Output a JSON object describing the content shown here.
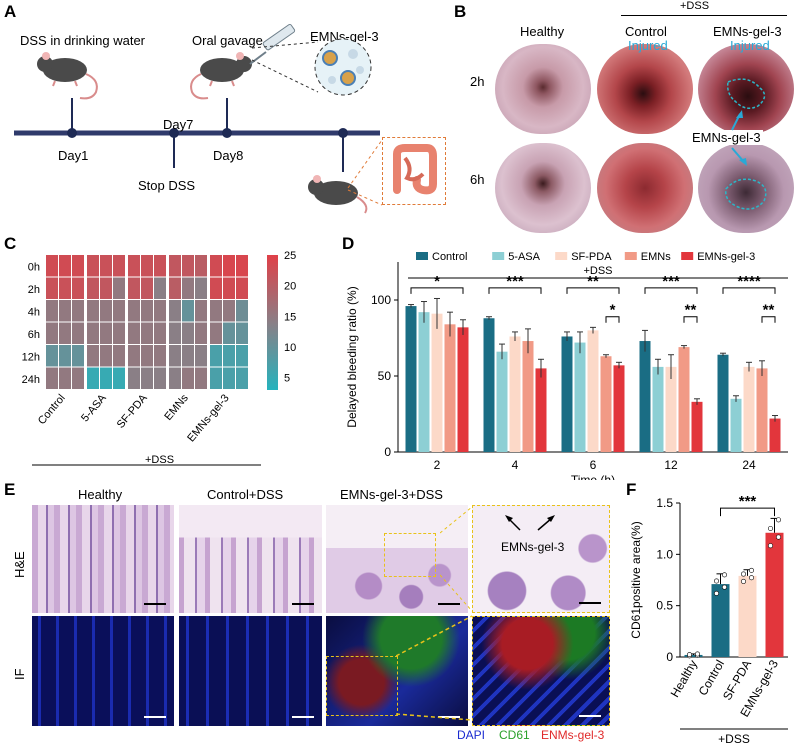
{
  "panel_a": {
    "label": "A",
    "dss_text": "DSS in drinking water",
    "gavage_text": "Oral gavage",
    "material_text": "EMNs-gel-3",
    "day1": "Day1",
    "day7": "Day7",
    "day8": "Day8",
    "stop_dss": "Stop DSS"
  },
  "panel_b": {
    "label": "B",
    "dss_header": "+DSS",
    "col_healthy": "Healthy",
    "col_control": "Control",
    "col_emns": "EMNs-gel-3",
    "row_2h": "2h",
    "row_6h": "6h",
    "injured_1": "Injured",
    "injured_2": "Injured",
    "pointer_label": "EMNs-gel-3"
  },
  "panel_c": {
    "label": "C",
    "groups_label": "+DSS",
    "colorbar_ticks": [
      "25",
      "20",
      "15",
      "10",
      "5"
    ],
    "colors": {
      "high": "#e04048",
      "mid": "#8a7f86",
      "low": "#25b3bd"
    }
  },
  "panel_e": {
    "label": "E",
    "col_healthy": "Healthy",
    "col_control": "Control+DSS",
    "col_emns": "EMNs-gel-3+DSS",
    "row_he": "H&E",
    "row_if": "IF",
    "inset_label": "EMNs-gel-3",
    "legend_dapi": "DAPI",
    "legend_cd61": "CD61",
    "legend_emns": "ENMs-gel-3"
  },
  "chart_data": [
    {
      "type": "heatmap",
      "panel": "C",
      "rows": [
        "0h",
        "2h",
        "4h",
        "6h",
        "12h",
        "24h"
      ],
      "columns": [
        "Control",
        "5-ASA",
        "SF-PDA",
        "EMNs",
        "EMNs-gel-3"
      ],
      "replicates_per_group": 3,
      "values": [
        [
          23,
          23,
          23,
          22,
          22,
          22,
          22,
          22,
          22,
          21,
          21,
          20,
          23,
          24,
          24
        ],
        [
          22,
          22,
          22,
          21,
          21,
          15,
          21,
          21,
          14,
          20,
          15,
          14,
          23,
          23,
          23
        ],
        [
          15,
          15,
          15,
          15,
          15,
          15,
          15,
          15,
          15,
          14,
          10,
          15,
          15,
          15,
          11
        ],
        [
          15,
          15,
          15,
          15,
          15,
          15,
          15,
          15,
          15,
          14,
          14,
          15,
          15,
          10,
          10
        ],
        [
          10,
          10,
          10,
          15,
          15,
          15,
          15,
          15,
          15,
          14,
          14,
          14,
          7,
          7,
          7
        ],
        [
          15,
          15,
          15,
          5,
          5,
          5,
          14,
          14,
          14,
          14,
          15,
          15,
          7,
          7,
          7
        ]
      ],
      "colorbar_range": [
        3,
        25
      ],
      "xlabel": "+DSS"
    },
    {
      "type": "bar",
      "panel": "D",
      "title": "+DSS",
      "xlabel": "Time (h)",
      "ylabel": "Delayed bleeding ratio (%)",
      "ylim": [
        0,
        125
      ],
      "yticks": [
        "0",
        "50",
        "100"
      ],
      "categories": [
        "2",
        "4",
        "6",
        "12",
        "24"
      ],
      "series": [
        {
          "name": "Control",
          "color": "#1a6d84",
          "values": [
            96,
            88,
            76,
            73,
            64
          ],
          "errors": [
            1,
            1,
            3,
            7,
            1
          ]
        },
        {
          "name": "5-ASA",
          "color": "#8dcfd4",
          "values": [
            92,
            66,
            72,
            56,
            35
          ],
          "errors": [
            7,
            5,
            7,
            5,
            2
          ]
        },
        {
          "name": "SF-PDA",
          "color": "#fcd9c8",
          "values": [
            91,
            76,
            80,
            56,
            56
          ],
          "errors": [
            10,
            3,
            2,
            8,
            3
          ]
        },
        {
          "name": "EMNs",
          "color": "#f19a86",
          "values": [
            84,
            73,
            63,
            69,
            55
          ],
          "errors": [
            8,
            8,
            1,
            1,
            5
          ]
        },
        {
          "name": "EMNs-gel-3",
          "color": "#e2363c",
          "values": [
            82,
            55,
            57,
            33,
            22
          ],
          "errors": [
            5,
            6,
            2,
            2,
            2
          ]
        }
      ],
      "significance": [
        {
          "category": "2",
          "label": "*"
        },
        {
          "category": "4",
          "label": "***"
        },
        {
          "category": "6",
          "label": "**"
        },
        {
          "category": "6",
          "label": "*"
        },
        {
          "category": "12",
          "label": "***"
        },
        {
          "category": "12",
          "label": "**"
        },
        {
          "category": "24",
          "label": "****"
        },
        {
          "category": "24",
          "label": "**"
        }
      ]
    },
    {
      "type": "bar",
      "panel": "F",
      "ylabel": "CD61positive area(%)",
      "xlabel": "+DSS",
      "ylim": [
        0,
        1.5
      ],
      "yticks": [
        "0",
        "0.5",
        "1.0",
        "1.5"
      ],
      "categories": [
        "Healthy",
        "Control",
        "SF-PDA",
        "EMNs-gel-3"
      ],
      "values": [
        0.02,
        0.71,
        0.79,
        1.21
      ],
      "errors": [
        0.01,
        0.1,
        0.06,
        0.14
      ],
      "colors": [
        "#1a6d84",
        "#1a6d84",
        "#fcd9c8",
        "#e2363c"
      ],
      "significance": [
        {
          "from": "Control",
          "to": "EMNs-gel-3",
          "label": "***"
        }
      ]
    }
  ]
}
